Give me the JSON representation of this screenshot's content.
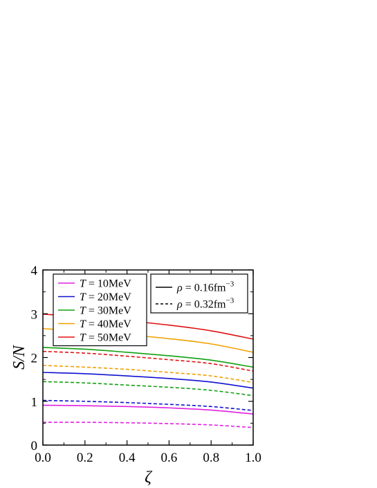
{
  "chart_data": {
    "type": "line",
    "xlabel": "ζ",
    "ylabel": "S/N",
    "xlim": [
      0.0,
      1.0
    ],
    "ylim": [
      0,
      4
    ],
    "xticks": [
      "0.0",
      "0.2",
      "0.4",
      "0.6",
      "0.8",
      "1.0"
    ],
    "yticks": [
      "0",
      "1",
      "2",
      "3",
      "4"
    ],
    "grid": false,
    "x": [
      0.0,
      0.2,
      0.4,
      0.6,
      0.8,
      1.0
    ],
    "legend_temperature": {
      "placement": "top-left",
      "entries": [
        {
          "var": "T",
          "text": " = 10MeV",
          "color": "#e020e0"
        },
        {
          "var": "T",
          "text": " = 20MeV",
          "color": "#1010d0"
        },
        {
          "var": "T",
          "text": " = 30MeV",
          "color": "#10a010"
        },
        {
          "var": "T",
          "text": " = 40MeV",
          "color": "#f0a000"
        },
        {
          "var": "T",
          "text": " = 50MeV",
          "color": "#e01010"
        }
      ]
    },
    "legend_density": {
      "placement": "top-right",
      "entries": [
        {
          "var": "ρ",
          "text": " = 0.16fm",
          "sup": "−3",
          "style": "solid"
        },
        {
          "var": "ρ",
          "text": " = 0.32fm",
          "sup": "−3",
          "style": "dashed"
        }
      ]
    },
    "series": [
      {
        "T": "10MeV",
        "rho": "0.16",
        "color": "#e020e0",
        "style": "solid",
        "values": [
          0.91,
          0.9,
          0.88,
          0.85,
          0.8,
          0.71
        ]
      },
      {
        "T": "10MeV",
        "rho": "0.32",
        "color": "#e020e0",
        "style": "dashed",
        "values": [
          0.52,
          0.52,
          0.51,
          0.49,
          0.46,
          0.4
        ]
      },
      {
        "T": "20MeV",
        "rho": "0.16",
        "color": "#1010d0",
        "style": "solid",
        "values": [
          1.66,
          1.63,
          1.58,
          1.52,
          1.44,
          1.3
        ]
      },
      {
        "T": "20MeV",
        "rho": "0.32",
        "color": "#1010d0",
        "style": "dashed",
        "values": [
          1.02,
          1.0,
          0.97,
          0.93,
          0.88,
          0.79
        ]
      },
      {
        "T": "30MeV",
        "rho": "0.16",
        "color": "#10a010",
        "style": "solid",
        "values": [
          2.23,
          2.19,
          2.12,
          2.04,
          1.94,
          1.78
        ]
      },
      {
        "T": "30MeV",
        "rho": "0.32",
        "color": "#10a010",
        "style": "dashed",
        "values": [
          1.45,
          1.42,
          1.37,
          1.32,
          1.25,
          1.13
        ]
      },
      {
        "T": "40MeV",
        "rho": "0.16",
        "color": "#f0a000",
        "style": "solid",
        "values": [
          2.66,
          2.6,
          2.52,
          2.43,
          2.31,
          2.12
        ]
      },
      {
        "T": "40MeV",
        "rho": "0.32",
        "color": "#f0a000",
        "style": "dashed",
        "values": [
          1.82,
          1.78,
          1.73,
          1.66,
          1.58,
          1.43
        ]
      },
      {
        "T": "50MeV",
        "rho": "0.16",
        "color": "#e01010",
        "style": "solid",
        "values": [
          2.99,
          2.93,
          2.84,
          2.74,
          2.61,
          2.42
        ]
      },
      {
        "T": "50MeV",
        "rho": "0.32",
        "color": "#e01010",
        "style": "dashed",
        "values": [
          2.14,
          2.1,
          2.03,
          1.95,
          1.86,
          1.69
        ]
      }
    ]
  }
}
